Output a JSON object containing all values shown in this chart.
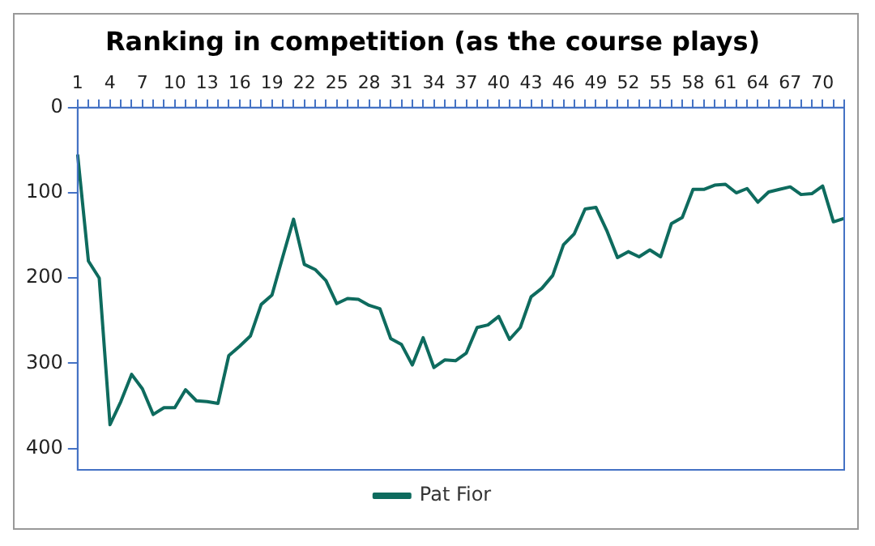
{
  "chart_data": {
    "type": "line",
    "title": "Ranking in competition (as the course plays)",
    "categories": [
      "1",
      null,
      null,
      "4",
      null,
      null,
      "7",
      null,
      null,
      "10",
      null,
      null,
      "13",
      null,
      null,
      "16",
      null,
      null,
      "19",
      null,
      null,
      "22",
      null,
      null,
      "25",
      null,
      null,
      "28",
      null,
      null,
      "31",
      null,
      null,
      "34",
      null,
      null,
      "37",
      null,
      null,
      "40",
      null,
      null,
      "43",
      null,
      null,
      "46",
      null,
      null,
      "49",
      null,
      null,
      "52",
      null,
      null,
      "55",
      null,
      null,
      "58",
      null,
      null,
      "61",
      null,
      null,
      "64",
      null,
      null,
      "67",
      null,
      null,
      "70",
      null,
      null
    ],
    "series": [
      {
        "name": "Pat Fior",
        "color": "#0e6b5e",
        "values": [
          55,
          180,
          200,
          372,
          345,
          313,
          330,
          360,
          352,
          352,
          331,
          344,
          345,
          347,
          291,
          280,
          268,
          231,
          220,
          175,
          131,
          184,
          190,
          203,
          230,
          224,
          225,
          232,
          236,
          271,
          278,
          302,
          270,
          305,
          296,
          297,
          288,
          258,
          255,
          245,
          272,
          258,
          222,
          212,
          197,
          161,
          148,
          119,
          117,
          144,
          176,
          169,
          175,
          167,
          175,
          136,
          129,
          96,
          96,
          91,
          90,
          100,
          95,
          111,
          99,
          96,
          93,
          102,
          101,
          92,
          134,
          130
        ]
      }
    ],
    "ylim": [
      425,
      0
    ],
    "yticks": [
      0,
      100,
      200,
      300,
      400
    ],
    "grid": false,
    "legend": "bottom",
    "marker": "none",
    "line_style": "solid"
  }
}
